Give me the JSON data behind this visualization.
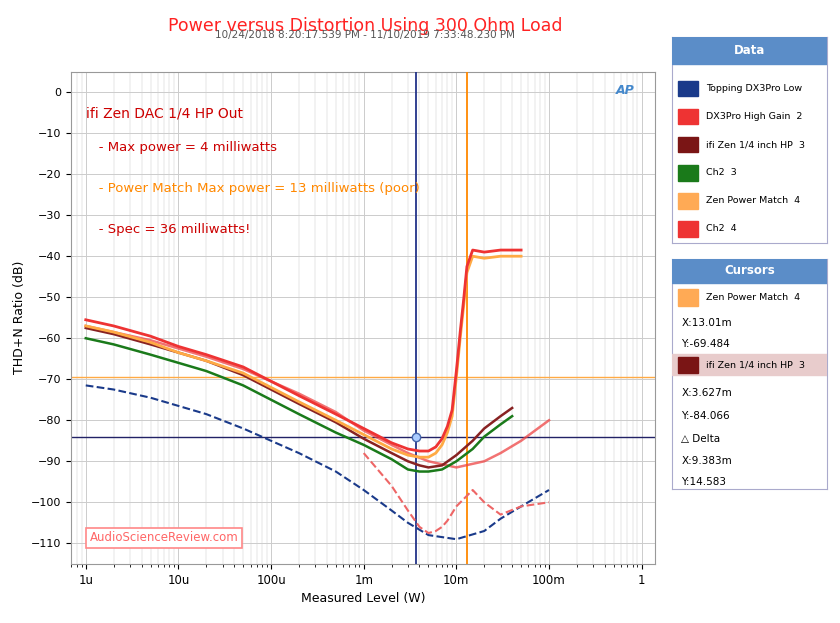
{
  "title": "Power versus Distortion Using 300 Ohm Load",
  "subtitle": "10/24/2018 8:20:17.539 PM - 11/10/2019 7:33:48.230 PM",
  "xlabel": "Measured Level (W)",
  "ylabel": "THD+N Ratio (dB)",
  "ylim": [
    -115,
    5
  ],
  "yticks": [
    0,
    -10,
    -20,
    -30,
    -40,
    -50,
    -60,
    -70,
    -80,
    -90,
    -100,
    -110
  ],
  "xtick_labels": [
    "1u",
    "10u",
    "100u",
    "1m",
    "10m",
    "100m",
    "1"
  ],
  "xtick_vals": [
    1e-06,
    1e-05,
    0.0001,
    0.001,
    0.01,
    0.1,
    1.0
  ],
  "ann_text1": "ifi Zen DAC 1/4 HP Out",
  "ann_text2": "   - Max power = 4 milliwatts",
  "ann_text3": "   - Power Match Max power = 13 milliwatts (poor)",
  "ann_text4": "   - Spec = 36 milliwatts!",
  "ann_color1": "#cc0000",
  "ann_color2": "#cc0000",
  "ann_color3": "#ff8800",
  "ann_color4": "#cc0000",
  "cursor_vline_blue": 0.003627,
  "cursor_vline_orange": 0.01301,
  "cursor_hline_dark": -84.066,
  "cursor_hline_orange": -69.484,
  "bg_color": "#ffffff",
  "grid_color": "#cccccc",
  "title_color": "#ff2222",
  "subtitle_color": "#555555",
  "legend_header_color": "#5b8dc8",
  "legend_entries": [
    {
      "label": "Topping DX3Pro Low",
      "color": "#1a3a8a"
    },
    {
      "label": "DX3Pro High Gain  2",
      "color": "#ee3333"
    },
    {
      "label": "ifi Zen 1/4 inch HP  3",
      "color": "#7a1515"
    },
    {
      "label": "Ch2  3",
      "color": "#1a7a1a"
    },
    {
      "label": "Zen Power Match  4",
      "color": "#ffaa55"
    },
    {
      "label": "Ch2  4",
      "color": "#ee3333"
    }
  ],
  "cursor1_label": "Zen Power Match  4",
  "cursor1_color": "#ffaa55",
  "cursor1_x": "13.01m",
  "cursor1_y": "-69.484",
  "cursor2_label": "ifi Zen 1/4 inch HP  3",
  "cursor2_color": "#7a1515",
  "cursor2_x": "3.627m",
  "cursor2_y": "-84.066",
  "delta_x": "9.383m",
  "delta_y": "14.583",
  "curve_topping_low_x": [
    1e-06,
    2e-06,
    5e-06,
    1e-05,
    2e-05,
    5e-05,
    0.0001,
    0.0002,
    0.0005,
    0.001,
    0.002,
    0.003,
    0.005,
    0.01,
    0.02,
    0.03,
    0.05,
    0.1
  ],
  "curve_topping_low_y": [
    -71.5,
    -72.5,
    -74.5,
    -76.5,
    -78.5,
    -82,
    -85,
    -88,
    -92.5,
    -97,
    -102,
    -105,
    -108,
    -109,
    -107,
    -104,
    -101,
    -97
  ],
  "curve_topping_low_color": "#1a3a8a",
  "curve_topping_low_style": "--",
  "curve_dx3pro_x": [
    1e-06,
    2e-06,
    5e-06,
    1e-05,
    2e-05,
    5e-05,
    0.0001,
    0.0002,
    0.0005,
    0.001,
    0.002,
    0.003,
    0.005,
    0.01,
    0.02,
    0.03,
    0.05,
    0.1
  ],
  "curve_dx3pro_y": [
    -57,
    -58.5,
    -60.5,
    -62.5,
    -64.5,
    -67.5,
    -70.5,
    -73.5,
    -78,
    -82.5,
    -86,
    -88,
    -90,
    -91.5,
    -90,
    -88,
    -85,
    -80
  ],
  "curve_dx3pro_color": "#ee4444",
  "curve_dx3pro_style": "-",
  "curve_ifi_ch1_x": [
    1e-06,
    2e-06,
    5e-06,
    1e-05,
    2e-05,
    5e-05,
    0.0001,
    0.0002,
    0.0005,
    0.001,
    0.002,
    0.003,
    0.004,
    0.005,
    0.007,
    0.01,
    0.015,
    0.02,
    0.03,
    0.04
  ],
  "curve_ifi_ch1_y": [
    -57.5,
    -59,
    -61.5,
    -63.5,
    -65.5,
    -69,
    -72.5,
    -76,
    -80.5,
    -84.5,
    -88,
    -90,
    -91,
    -91.5,
    -91,
    -88.5,
    -85,
    -82,
    -79,
    -77
  ],
  "curve_ifi_ch1_color": "#882222",
  "curve_ifi_ch1_style": "-",
  "curve_ifi_ch2_x": [
    1e-06,
    2e-06,
    5e-06,
    1e-05,
    2e-05,
    5e-05,
    0.0001,
    0.0002,
    0.0005,
    0.001,
    0.002,
    0.003,
    0.004,
    0.005,
    0.007,
    0.01,
    0.015,
    0.02,
    0.03,
    0.04
  ],
  "curve_ifi_ch2_y": [
    -60,
    -61.5,
    -64,
    -66,
    -68,
    -71.5,
    -75,
    -78.5,
    -83,
    -86,
    -89.5,
    -92,
    -92.5,
    -92.5,
    -92,
    -90,
    -87,
    -84,
    -81,
    -79
  ],
  "curve_ifi_ch2_color": "#1a7a1a",
  "curve_ifi_ch2_style": "-",
  "curve_zen_pm_x": [
    1e-06,
    2e-06,
    5e-06,
    1e-05,
    2e-05,
    5e-05,
    0.0001,
    0.0002,
    0.0005,
    0.001,
    0.002,
    0.003,
    0.004,
    0.005,
    0.006,
    0.007,
    0.008,
    0.009,
    0.01,
    0.011,
    0.012,
    0.013,
    0.015,
    0.02,
    0.03,
    0.04,
    0.05
  ],
  "curve_zen_pm_y": [
    -57,
    -58.5,
    -61,
    -63.5,
    -65.5,
    -68.5,
    -72,
    -75.5,
    -80,
    -83.5,
    -87,
    -88.5,
    -89,
    -89,
    -88,
    -86,
    -83,
    -79,
    -69.5,
    -60,
    -52,
    -44,
    -40,
    -40.5,
    -40,
    -40,
    -40
  ],
  "curve_zen_pm_color": "#ffaa44",
  "curve_zen_pm_style": "-",
  "curve_zen_pm2_x": [
    1e-06,
    2e-06,
    5e-06,
    1e-05,
    2e-05,
    5e-05,
    0.0001,
    0.0002,
    0.0005,
    0.001,
    0.002,
    0.003,
    0.004,
    0.005,
    0.006,
    0.007,
    0.008,
    0.009,
    0.01,
    0.011,
    0.012,
    0.013,
    0.015,
    0.02,
    0.03,
    0.04,
    0.05
  ],
  "curve_zen_pm2_y": [
    -55.5,
    -57,
    -59.5,
    -62,
    -64,
    -67,
    -70.5,
    -74,
    -78.5,
    -82,
    -85.5,
    -87,
    -87.5,
    -87.5,
    -86.5,
    -84.5,
    -81.5,
    -77.5,
    -68,
    -58.5,
    -50.5,
    -42.5,
    -38.5,
    -39,
    -38.5,
    -38.5,
    -38.5
  ],
  "curve_zen_pm2_color": "#ee3333",
  "curve_zen_pm2_style": "-",
  "curve_dashed_pink_x": [
    0.001,
    0.002,
    0.003,
    0.004,
    0.005,
    0.006,
    0.007,
    0.008,
    0.01,
    0.015,
    0.02,
    0.03,
    0.05,
    0.1
  ],
  "curve_dashed_pink_y": [
    -88,
    -96,
    -102,
    -106,
    -107.5,
    -107,
    -106,
    -104.5,
    -101,
    -97,
    -100,
    -103,
    -101,
    -100
  ],
  "curve_dashed_pink_color": "#ee6666",
  "curve_dashed_pink_style": "--"
}
